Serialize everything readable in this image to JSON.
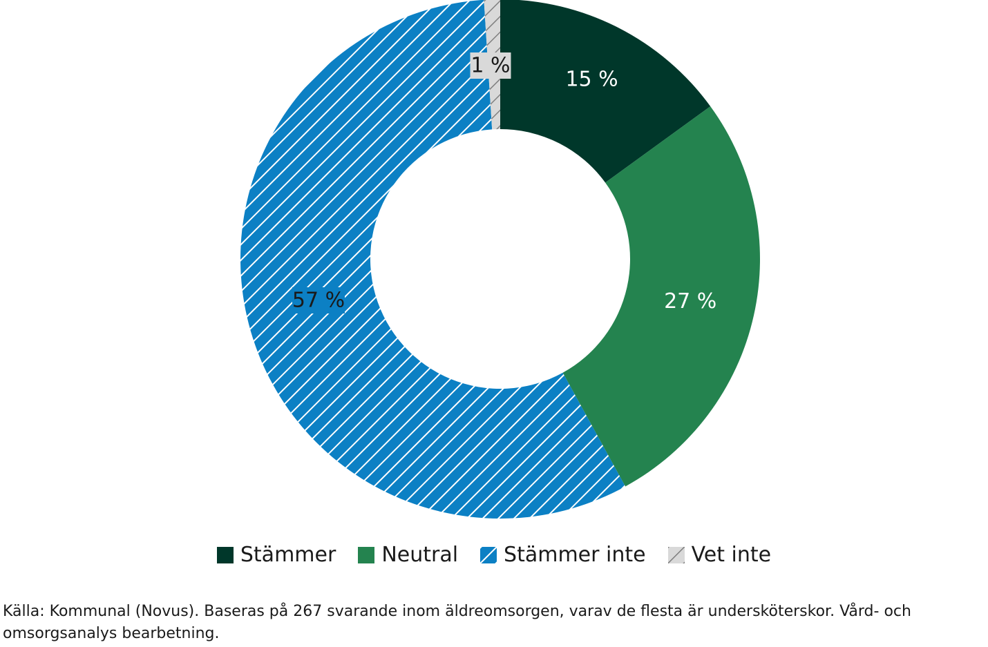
{
  "chart_data": {
    "type": "pie",
    "variant": "donut",
    "categories": [
      "Stämmer",
      "Neutral",
      "Stämmer inte",
      "Vet inte"
    ],
    "values": [
      15,
      27,
      57,
      1
    ],
    "labels": [
      "15 %",
      "27 %",
      "57 %",
      "1 %"
    ],
    "colors": [
      "#00372a",
      "#24834f",
      "#0c80c4",
      "#d9d9d9"
    ],
    "patterns": [
      "solid",
      "solid",
      "hatch-white",
      "hatch-gray"
    ],
    "legend": "bottom",
    "title": "",
    "source": "Källa: Kommunal (Novus). Baseras på 267 svarande inom äldreomsorgen, varav de flesta är undersköterskor. Vård- och omsorgsanalys bearbetning."
  }
}
